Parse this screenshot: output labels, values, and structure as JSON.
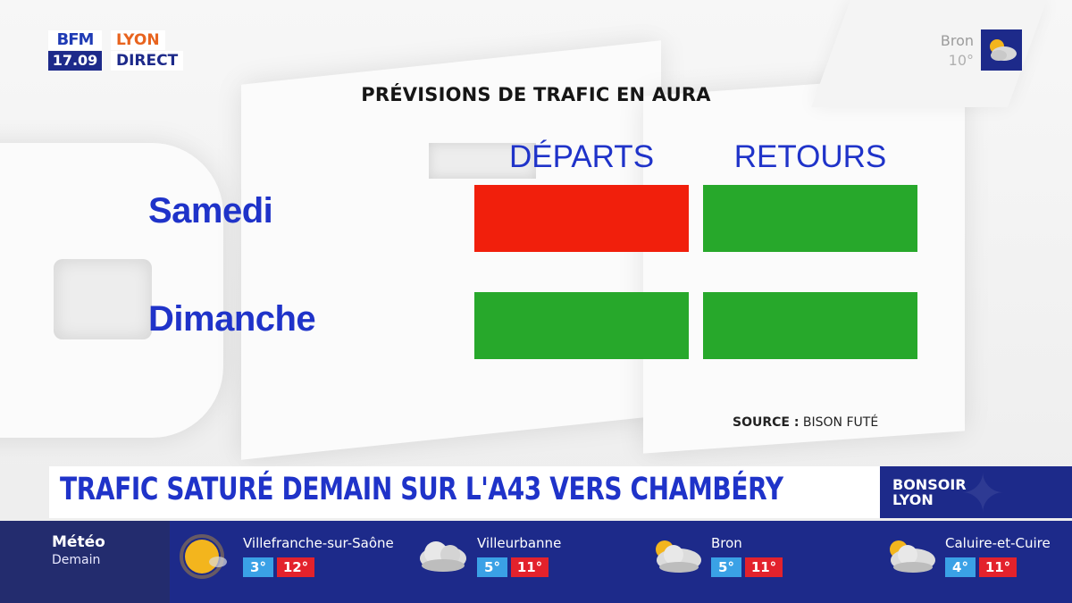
{
  "channel": {
    "brand": "BFM",
    "time": "17.09",
    "city_tag": "LYON",
    "live_tag": "DIRECT"
  },
  "top_weather": {
    "city": "Bron",
    "temp": "10°",
    "icon": "sun-cloud-icon"
  },
  "chart": {
    "title": "PRÉVISIONS DE TRAFIC EN AURA",
    "source_label": "SOURCE :",
    "source_value": "BISON FUTÉ"
  },
  "chart_data": {
    "type": "table",
    "columns": [
      "DÉPARTS",
      "RETOURS"
    ],
    "rows": [
      {
        "label": "Samedi",
        "values": [
          "red",
          "green"
        ]
      },
      {
        "label": "Dimanche",
        "values": [
          "green",
          "green"
        ]
      }
    ],
    "colors": {
      "red": "#f11f0c",
      "green": "#27a82b"
    }
  },
  "headline": {
    "text": "TRAFIC SATURÉ DEMAIN SUR L'A43 VERS CHAMBÉRY"
  },
  "show": {
    "line1": "BONSOIR",
    "line2": "LYON"
  },
  "weather_ticker": {
    "title": "Météo",
    "subtitle": "Demain",
    "cities": [
      {
        "name": "Villefranche-sur-Saône",
        "low": "3°",
        "high": "12°",
        "icon": "sun-icon"
      },
      {
        "name": "Villeurbanne",
        "low": "5°",
        "high": "11°",
        "icon": "cloud-icon"
      },
      {
        "name": "Bron",
        "low": "5°",
        "high": "11°",
        "icon": "sun-cloud-icon"
      },
      {
        "name": "Caluire-et-Cuire",
        "low": "4°",
        "high": "11°",
        "icon": "sun-cloud-icon"
      }
    ],
    "colors": {
      "low": "#3aa1e6",
      "high": "#e3222c"
    }
  }
}
